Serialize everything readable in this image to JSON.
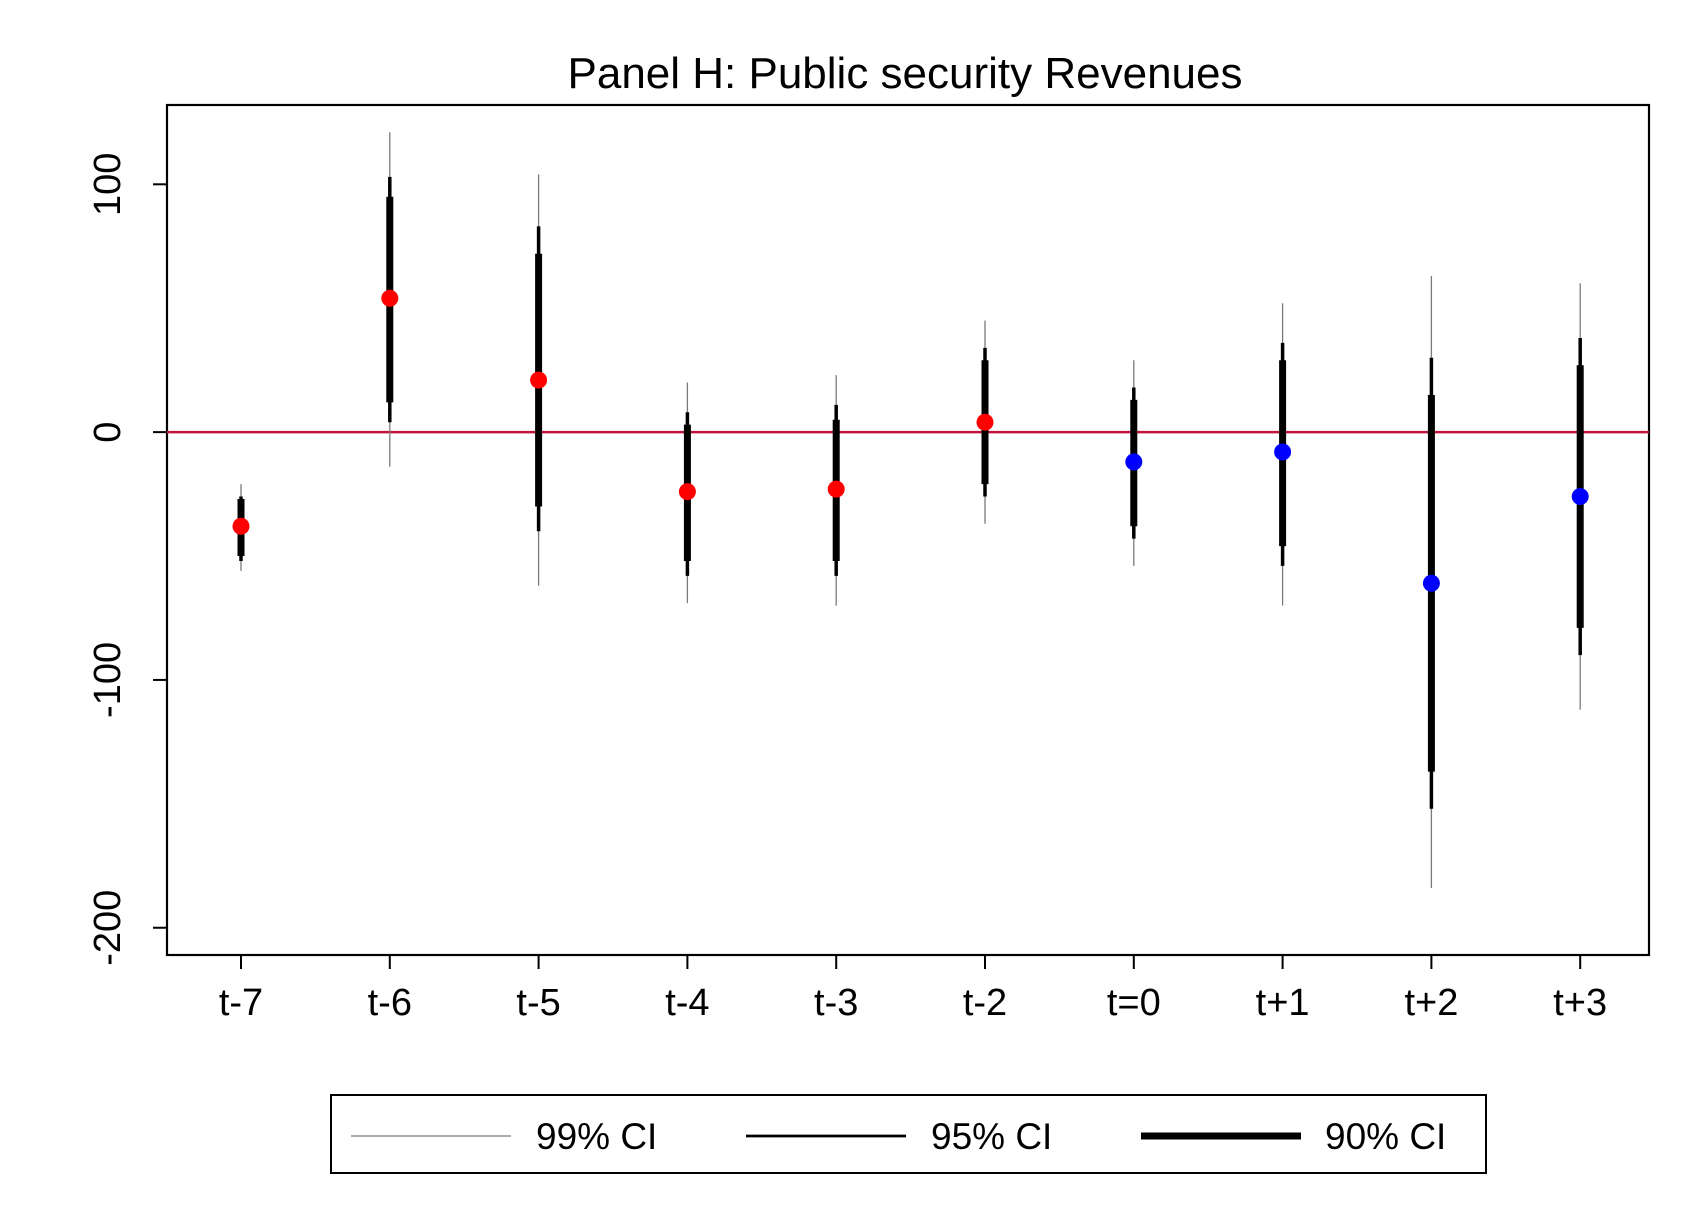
{
  "chart_data": {
    "type": "scatter",
    "title": "Panel H: Public security Revenues",
    "xlabel": "",
    "ylabel": "",
    "categories": [
      "t-7",
      "t-6",
      "t-5",
      "t-4",
      "t-3",
      "t-2",
      "t=0",
      "t+1",
      "t+2",
      "t+3"
    ],
    "ylim": [
      -211,
      132
    ],
    "yticks": [
      100,
      0,
      -100,
      -200
    ],
    "yticklabels": [
      "100",
      "0",
      "-100",
      "-200"
    ],
    "reference_line": {
      "y": 0,
      "color": "#c0143c"
    },
    "grid": false,
    "legend_position": "bottom",
    "points": [
      {
        "label": "t-7",
        "estimate": -38,
        "ci90": [
          -50,
          -27
        ],
        "ci95": [
          -52,
          -26
        ],
        "ci99": [
          -56,
          -21
        ],
        "color": "#ff0000"
      },
      {
        "label": "t-6",
        "estimate": 54,
        "ci90": [
          12,
          95
        ],
        "ci95": [
          4,
          103
        ],
        "ci99": [
          -14,
          121
        ],
        "color": "#ff0000"
      },
      {
        "label": "t-5",
        "estimate": 21,
        "ci90": [
          -30,
          72
        ],
        "ci95": [
          -40,
          83
        ],
        "ci99": [
          -62,
          104
        ],
        "color": "#ff0000"
      },
      {
        "label": "t-4",
        "estimate": -24,
        "ci90": [
          -52,
          3
        ],
        "ci95": [
          -58,
          8
        ],
        "ci99": [
          -69,
          20
        ],
        "color": "#ff0000"
      },
      {
        "label": "t-3",
        "estimate": -23,
        "ci90": [
          -52,
          5
        ],
        "ci95": [
          -58,
          11
        ],
        "ci99": [
          -70,
          23
        ],
        "color": "#ff0000"
      },
      {
        "label": "t-2",
        "estimate": 4,
        "ci90": [
          -21,
          29
        ],
        "ci95": [
          -26,
          34
        ],
        "ci99": [
          -37,
          45
        ],
        "color": "#ff0000"
      },
      {
        "label": "t=0",
        "estimate": -12,
        "ci90": [
          -38,
          13
        ],
        "ci95": [
          -43,
          18
        ],
        "ci99": [
          -54,
          29
        ],
        "color": "#0000ff"
      },
      {
        "label": "t+1",
        "estimate": -8,
        "ci90": [
          -46,
          29
        ],
        "ci95": [
          -54,
          36
        ],
        "ci99": [
          -70,
          52
        ],
        "color": "#0000ff"
      },
      {
        "label": "t+2",
        "estimate": -61,
        "ci90": [
          -137,
          15
        ],
        "ci95": [
          -152,
          30
        ],
        "ci99": [
          -184,
          63
        ],
        "color": "#0000ff"
      },
      {
        "label": "t+3",
        "estimate": -26,
        "ci90": [
          -79,
          27
        ],
        "ci95": [
          -90,
          38
        ],
        "ci99": [
          -112,
          60
        ],
        "color": "#0000ff"
      }
    ],
    "legend": [
      {
        "label": "99% CI",
        "line": "thin"
      },
      {
        "label": "95% CI",
        "line": "medium"
      },
      {
        "label": "90% CI",
        "line": "thick"
      }
    ]
  }
}
